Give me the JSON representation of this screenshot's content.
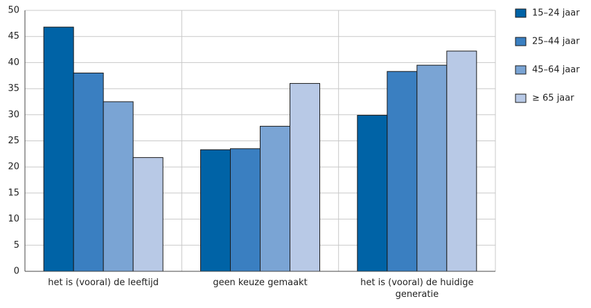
{
  "chart_data": {
    "type": "bar",
    "categories": [
      "het is (vooral) de leeftijd",
      "geen keuze gemaakt",
      "het is (vooral) de huidige generatie"
    ],
    "series": [
      {
        "name": "15–24 jaar",
        "color": "#0063a6",
        "values": [
          46.8,
          23.3,
          29.9
        ]
      },
      {
        "name": "25–44 jaar",
        "color": "#3a7fc1",
        "values": [
          38.0,
          23.5,
          38.3
        ]
      },
      {
        "name": "45–64 jaar",
        "color": "#7aa4d4",
        "values": [
          32.5,
          27.8,
          39.5
        ]
      },
      {
        "name": "≥ 65 jaar",
        "color": "#b8c9e6",
        "values": [
          21.8,
          36.0,
          42.2
        ]
      }
    ],
    "ylim": [
      0,
      50
    ],
    "yticks": [
      0,
      5,
      10,
      15,
      20,
      25,
      30,
      35,
      40,
      45,
      50
    ],
    "grid": true,
    "legend": "right"
  }
}
